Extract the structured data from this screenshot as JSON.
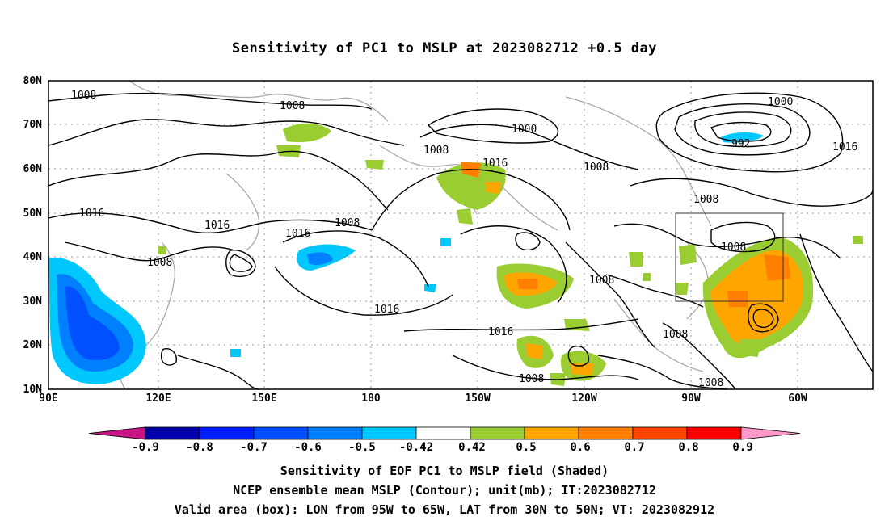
{
  "title": "Sensitivity of PC1 to MSLP at 2023082712 +0.5 day",
  "lat_labels": [
    "80N",
    "70N",
    "60N",
    "50N",
    "40N",
    "30N",
    "20N",
    "10N"
  ],
  "lon_labels": [
    "90E",
    "120E",
    "150E",
    "180",
    "150W",
    "120W",
    "90W",
    "60W"
  ],
  "contour_labels": [
    "1008",
    "1008",
    "1000",
    "1000",
    "992",
    "1016",
    "1008",
    "1008",
    "1008",
    "1016",
    "1008",
    "1016",
    "1016",
    "1008",
    "1016",
    "1008",
    "1016",
    "1008",
    "1008",
    "1016",
    "1008",
    "1008"
  ],
  "valid_box": {
    "lon_from": "95W",
    "lon_to": "65W",
    "lat_from": "30N",
    "lat_to": "50N"
  },
  "colorbar": {
    "labels": [
      "-0.9",
      "-0.8",
      "-0.7",
      "-0.6",
      "-0.5",
      "-0.42",
      "0.42",
      "0.5",
      "0.6",
      "0.7",
      "0.8",
      "0.9"
    ],
    "colors": [
      "#0000aa",
      "#0020ff",
      "#0050ff",
      "#0080ff",
      "#00c8ff",
      "#ffffff",
      "#9acd32",
      "#ffa500",
      "#ff7f00",
      "#ff4500",
      "#ff0000"
    ],
    "end_low": "#c71585",
    "end_high": "#ff99cc"
  },
  "captions": {
    "line1": "Sensitivity of EOF PC1 to MSLP field (Shaded)",
    "line2": "NCEP ensemble mean MSLP (Contour); unit(mb); IT:2023082712",
    "line3": "Valid area (box): LON from 95W to 65W, LAT from 30N to 50N; VT: 2023082912"
  }
}
